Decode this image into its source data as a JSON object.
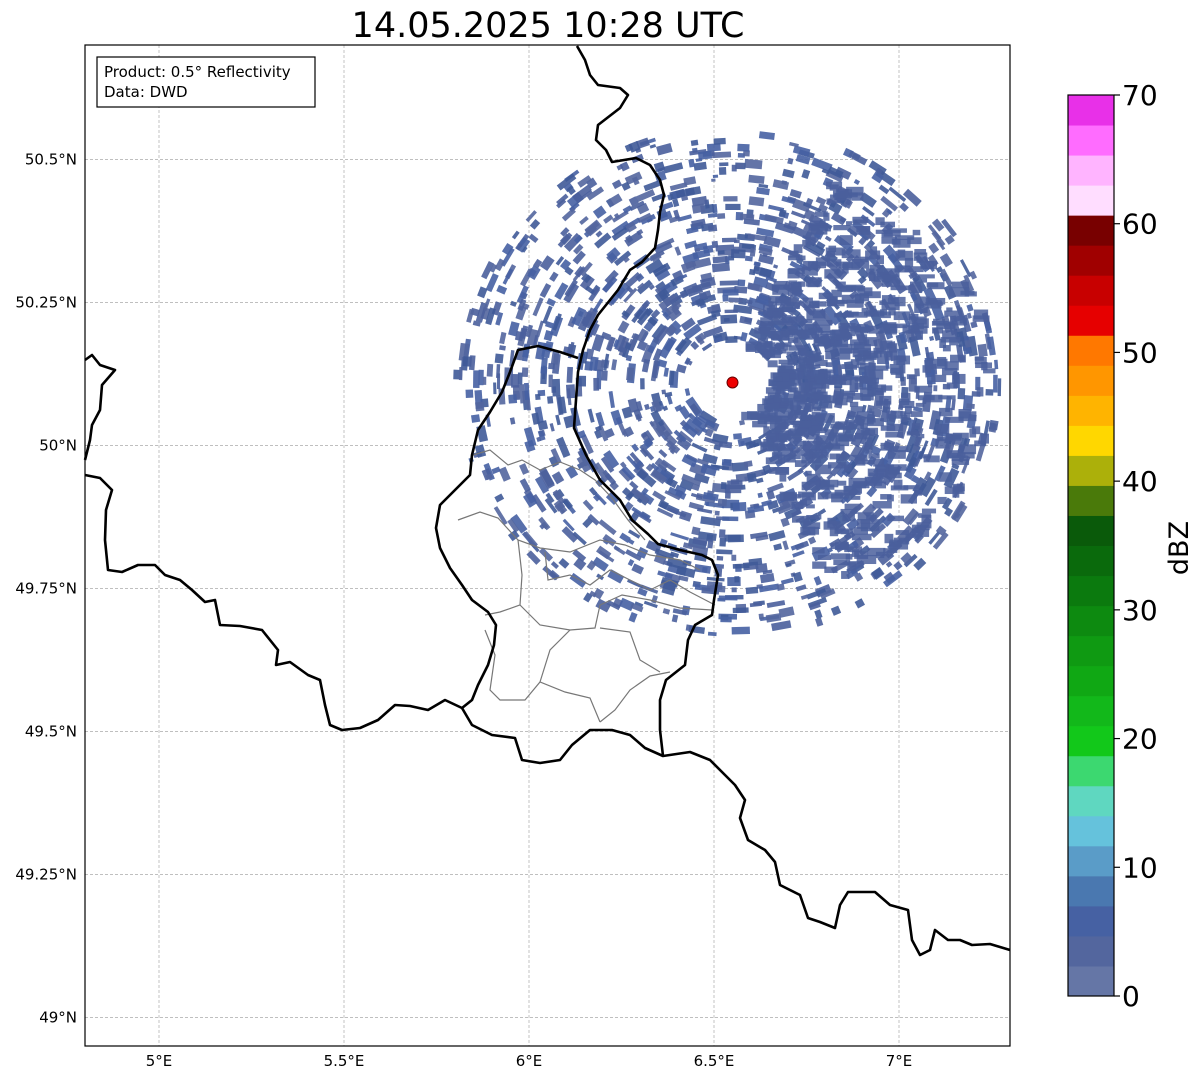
{
  "title": "14.05.2025 10:28 UTC",
  "info_box": {
    "product_line": "Product: 0.5° Reflectivity",
    "source_line": "Data: DWD"
  },
  "map": {
    "lon_range": [
      4.8,
      7.3
    ],
    "lat_range": [
      48.95,
      50.7
    ],
    "lon_ticks": [
      {
        "value": 5.0,
        "label": "5°E"
      },
      {
        "value": 5.5,
        "label": "5.5°E"
      },
      {
        "value": 6.0,
        "label": "6°E"
      },
      {
        "value": 6.5,
        "label": "6.5°E"
      },
      {
        "value": 7.0,
        "label": "7°E"
      }
    ],
    "lat_ticks": [
      {
        "value": 50.5,
        "label": "50.5°N"
      },
      {
        "value": 50.25,
        "label": "50.25°N"
      },
      {
        "value": 50.0,
        "label": "50°N"
      },
      {
        "value": 49.75,
        "label": "49.75°N"
      },
      {
        "value": 49.5,
        "label": "49.5°N"
      },
      {
        "value": 49.25,
        "label": "49.25°N"
      },
      {
        "value": 49.0,
        "label": "49°N"
      }
    ],
    "radar_site": {
      "lon": 6.55,
      "lat": 50.11,
      "color": "#ee0000"
    },
    "grid": true
  },
  "colorbar": {
    "label": "dBZ",
    "min": 0,
    "max": 70,
    "ticks": [
      0,
      10,
      20,
      30,
      40,
      50,
      60,
      70
    ],
    "colors": [
      "#6576a6",
      "#53669e",
      "#4661a3",
      "#4a78b0",
      "#5a9cc8",
      "#65c2dc",
      "#5fd7c0",
      "#3cd870",
      "#12c81a",
      "#12b81a",
      "#10a814",
      "#0f9a12",
      "#0d8a10",
      "#0b7a0e",
      "#0a6a0c",
      "#0a5a0a",
      "#4a7a0a",
      "#acb00a",
      "#ffd700",
      "#ffb400",
      "#ff9600",
      "#ff7800",
      "#e60000",
      "#c80000",
      "#a00000",
      "#780000",
      "#ffddff",
      "#ffb4ff",
      "#ff6cff",
      "#e830e8"
    ]
  }
}
